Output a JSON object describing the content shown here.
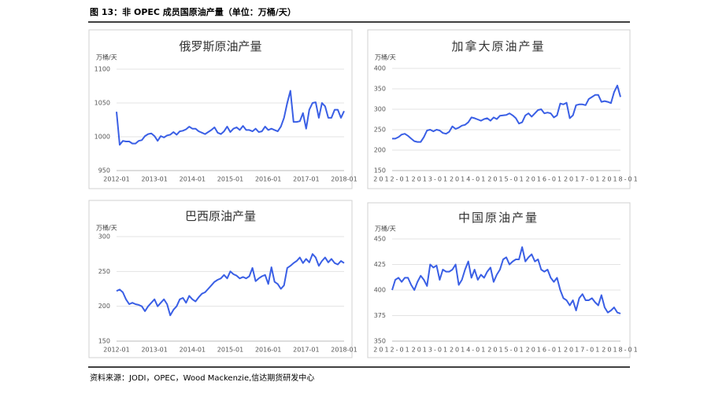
{
  "header": {
    "title": "图 13：非 OPEC 成员国原油产量（单位：万桶/天）"
  },
  "chart_data": [
    {
      "type": "line",
      "title": "俄罗斯原油产量",
      "y_label": "万桶/天",
      "color": "#3a5fe5",
      "grid": true,
      "categories": [
        "2012-01",
        null,
        null,
        null,
        null,
        null,
        null,
        null,
        null,
        null,
        null,
        null,
        "2013-01",
        null,
        null,
        null,
        null,
        null,
        null,
        null,
        null,
        null,
        null,
        null,
        "2014-01",
        null,
        null,
        null,
        null,
        null,
        null,
        null,
        null,
        null,
        null,
        null,
        "2015-01",
        null,
        null,
        null,
        null,
        null,
        null,
        null,
        null,
        null,
        null,
        null,
        "2016-01",
        null,
        null,
        null,
        null,
        null,
        null,
        null,
        null,
        null,
        null,
        null,
        "2017-01",
        null,
        null,
        null,
        null,
        null,
        null,
        null,
        null,
        null,
        null,
        null,
        "2018-01"
      ],
      "values": [
        1037,
        988,
        994,
        993,
        993,
        990,
        990,
        994,
        995,
        1001,
        1004,
        1005,
        1001,
        994,
        1001,
        999,
        1002,
        1003,
        1007,
        1003,
        1008,
        1009,
        1011,
        1015,
        1012,
        1012,
        1008,
        1006,
        1004,
        1007,
        1010,
        1014,
        1006,
        1004,
        1008,
        1015,
        1007,
        1012,
        1014,
        1010,
        1016,
        1010,
        1010,
        1008,
        1012,
        1007,
        1008,
        1015,
        1010,
        1012,
        1010,
        1008,
        1015,
        1028,
        1050,
        1068,
        1022,
        1022,
        1023,
        1035,
        1012,
        1040,
        1050,
        1051,
        1028,
        1050,
        1045,
        1028,
        1028,
        1040,
        1040,
        1028,
        1038
      ],
      "ylim": [
        950,
        1100
      ],
      "yticks": [
        950,
        1000,
        1050,
        1100
      ]
    },
    {
      "type": "line",
      "title": "加拿大原油产量",
      "y_label": "万桶/天",
      "color": "#3a5fe5",
      "grid": true,
      "categories": [
        "2012-01",
        null,
        null,
        null,
        null,
        null,
        null,
        null,
        null,
        null,
        null,
        null,
        "2013-01",
        null,
        null,
        null,
        null,
        null,
        null,
        null,
        null,
        null,
        null,
        null,
        "2014-01",
        null,
        null,
        null,
        null,
        null,
        null,
        null,
        null,
        null,
        null,
        null,
        "2015-01",
        null,
        null,
        null,
        null,
        null,
        null,
        null,
        null,
        null,
        null,
        null,
        "2016-01",
        null,
        null,
        null,
        null,
        null,
        null,
        null,
        null,
        null,
        null,
        null,
        "2017-01",
        null,
        null,
        null,
        null,
        null,
        null,
        null,
        null,
        null,
        null,
        null,
        "2018-01"
      ],
      "values": [
        228,
        228,
        232,
        238,
        240,
        235,
        228,
        222,
        220,
        220,
        232,
        248,
        250,
        246,
        250,
        248,
        242,
        240,
        245,
        258,
        252,
        255,
        260,
        262,
        268,
        280,
        278,
        275,
        272,
        276,
        278,
        272,
        280,
        276,
        284,
        285,
        286,
        290,
        285,
        278,
        265,
        268,
        285,
        290,
        282,
        290,
        298,
        300,
        290,
        292,
        290,
        280,
        285,
        314,
        312,
        316,
        278,
        285,
        310,
        312,
        312,
        310,
        325,
        330,
        335,
        335,
        318,
        320,
        318,
        315,
        342,
        358,
        330
      ],
      "ylim": [
        150,
        400
      ],
      "yticks": [
        150,
        200,
        250,
        300,
        350,
        400
      ]
    },
    {
      "type": "line",
      "title": "巴西原油产量",
      "y_label": "万桶/天",
      "color": "#3a5fe5",
      "grid": true,
      "categories": [
        "2012-01",
        null,
        null,
        null,
        null,
        null,
        null,
        null,
        null,
        null,
        null,
        null,
        "2013-01",
        null,
        null,
        null,
        null,
        null,
        null,
        null,
        null,
        null,
        null,
        null,
        "2014-01",
        null,
        null,
        null,
        null,
        null,
        null,
        null,
        null,
        null,
        null,
        null,
        "2015-01",
        null,
        null,
        null,
        null,
        null,
        null,
        null,
        null,
        null,
        null,
        null,
        "2016-01",
        null,
        null,
        null,
        null,
        null,
        null,
        null,
        null,
        null,
        null,
        null,
        "2017-01",
        null,
        null,
        null,
        null,
        null,
        null,
        null,
        null,
        null,
        null,
        null,
        "2018-01"
      ],
      "values": [
        222,
        224,
        220,
        210,
        203,
        205,
        203,
        202,
        200,
        193,
        200,
        205,
        210,
        200,
        205,
        210,
        203,
        187,
        195,
        200,
        210,
        212,
        205,
        215,
        210,
        207,
        213,
        218,
        220,
        225,
        230,
        235,
        238,
        240,
        245,
        240,
        250,
        246,
        244,
        240,
        242,
        240,
        243,
        255,
        236,
        240,
        243,
        245,
        232,
        256,
        235,
        232,
        225,
        230,
        255,
        258,
        262,
        265,
        270,
        262,
        268,
        263,
        275,
        270,
        258,
        265,
        270,
        263,
        268,
        262,
        260,
        265,
        262
      ],
      "ylim": [
        150,
        300
      ],
      "yticks": [
        150,
        200,
        250,
        300
      ]
    },
    {
      "type": "line",
      "title": "中国原油产量",
      "y_label": "万桶/天",
      "color": "#3a5fe5",
      "grid": true,
      "categories": [
        "2012-01",
        null,
        null,
        null,
        null,
        null,
        null,
        null,
        null,
        null,
        null,
        null,
        "2013-01",
        null,
        null,
        null,
        null,
        null,
        null,
        null,
        null,
        null,
        null,
        null,
        "2014-01",
        null,
        null,
        null,
        null,
        null,
        null,
        null,
        null,
        null,
        null,
        null,
        "2015-01",
        null,
        null,
        null,
        null,
        null,
        null,
        null,
        null,
        null,
        null,
        null,
        "2016-01",
        null,
        null,
        null,
        null,
        null,
        null,
        null,
        null,
        null,
        null,
        null,
        "2017-01",
        null,
        null,
        null,
        null,
        null,
        null,
        null,
        null,
        null,
        null,
        null,
        "2018-01"
      ],
      "values": [
        400,
        410,
        412,
        408,
        412,
        412,
        405,
        400,
        408,
        414,
        410,
        404,
        425,
        422,
        424,
        410,
        420,
        418,
        418,
        420,
        425,
        405,
        410,
        420,
        428,
        412,
        420,
        410,
        415,
        412,
        418,
        422,
        408,
        415,
        420,
        430,
        432,
        425,
        428,
        430,
        430,
        442,
        428,
        432,
        435,
        428,
        430,
        420,
        418,
        420,
        412,
        408,
        412,
        400,
        392,
        390,
        385,
        390,
        380,
        392,
        396,
        390,
        390,
        392,
        388,
        385,
        395,
        383,
        378,
        380,
        383,
        378,
        377
      ],
      "ylim": [
        350,
        450
      ],
      "yticks": [
        350,
        375,
        400,
        425,
        450
      ]
    }
  ],
  "footer": {
    "source": "资料来源：JODI，OPEC，Wood Mackenzie,信达期货研发中心"
  }
}
